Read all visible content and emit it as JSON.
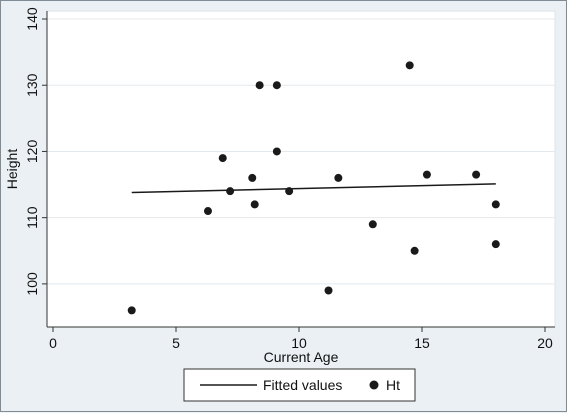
{
  "chart_data": {
    "type": "scatter",
    "xlabel": "Current Age",
    "ylabel": "Height",
    "xlim": [
      0,
      20
    ],
    "ylim": [
      95,
      140
    ],
    "xticks": [
      0,
      5,
      10,
      15,
      20
    ],
    "yticks": [
      100,
      110,
      120,
      130,
      140
    ],
    "grid": true,
    "legend_position": "bottom",
    "series": [
      {
        "name": "Fitted values",
        "kind": "line",
        "color": "#1a1a1a",
        "points": [
          {
            "x": 3.2,
            "y": 113.8
          },
          {
            "x": 18.0,
            "y": 115.1
          }
        ]
      },
      {
        "name": "Ht",
        "kind": "scatter",
        "color": "#1a1a1a",
        "points": [
          {
            "x": 3.2,
            "y": 96
          },
          {
            "x": 6.3,
            "y": 111
          },
          {
            "x": 6.9,
            "y": 119
          },
          {
            "x": 7.2,
            "y": 114
          },
          {
            "x": 8.1,
            "y": 116
          },
          {
            "x": 8.2,
            "y": 112
          },
          {
            "x": 8.4,
            "y": 130
          },
          {
            "x": 9.1,
            "y": 130
          },
          {
            "x": 9.1,
            "y": 120
          },
          {
            "x": 9.6,
            "y": 114
          },
          {
            "x": 11.2,
            "y": 99
          },
          {
            "x": 11.6,
            "y": 116
          },
          {
            "x": 13.0,
            "y": 109
          },
          {
            "x": 14.5,
            "y": 133
          },
          {
            "x": 14.7,
            "y": 105
          },
          {
            "x": 15.2,
            "y": 116.5
          },
          {
            "x": 17.2,
            "y": 116.5
          },
          {
            "x": 18.0,
            "y": 112
          },
          {
            "x": 18.0,
            "y": 106
          }
        ]
      }
    ]
  }
}
